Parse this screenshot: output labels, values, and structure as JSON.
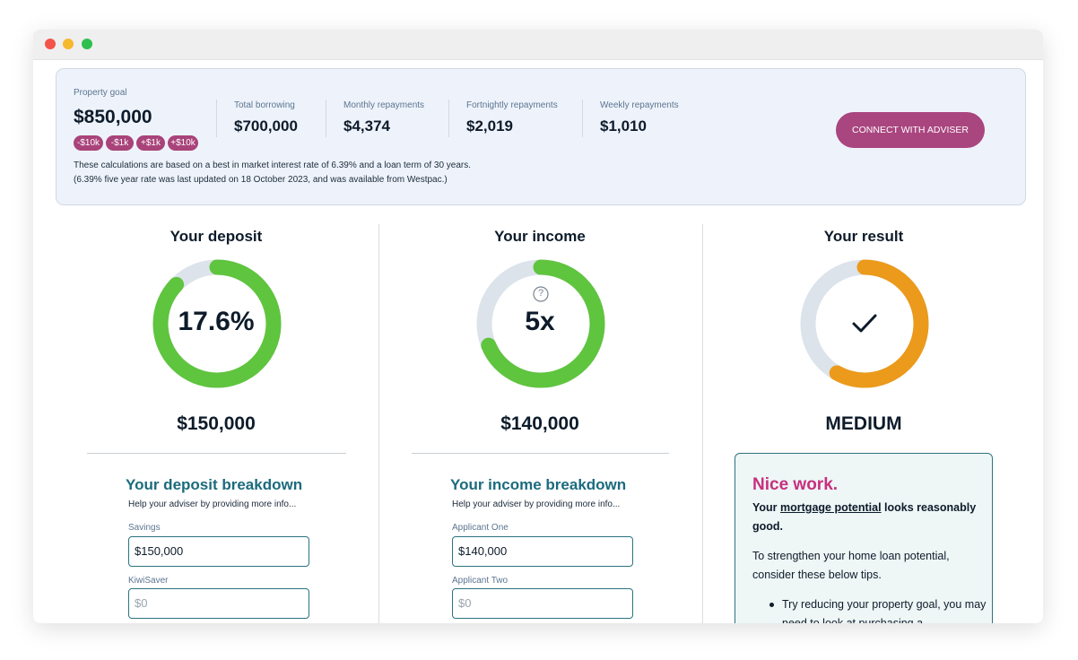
{
  "summary": {
    "property_goal": {
      "label": "Property goal",
      "value": "$850,000"
    },
    "adjust_buttons": [
      "-$10k",
      "-$1k",
      "+$1k",
      "+$10k"
    ],
    "stats": [
      {
        "label": "Total borrowing",
        "value": "$700,000"
      },
      {
        "label": "Monthly repayments",
        "value": "$4,374"
      },
      {
        "label": "Fortnightly repayments",
        "value": "$2,019"
      },
      {
        "label": "Weekly repayments",
        "value": "$1,010"
      }
    ],
    "notes": [
      "These calculations are based on a best in market interest rate of 6.39% and a loan term of 30 years.",
      "(6.39% five year rate was last updated on 18 October 2023, and was available from Westpac.)"
    ],
    "cta": "CONNECT WITH ADVISER"
  },
  "columns": [
    {
      "title": "Your deposit",
      "gauge_label": "17.6%",
      "amount": "$150,000",
      "breakdown": {
        "title": "Your deposit breakdown",
        "hint": "Help your adviser by providing more info...",
        "fields": [
          {
            "label": "Savings",
            "value": "$150,000"
          },
          {
            "label": "KiwiSaver",
            "value": "$0"
          }
        ]
      }
    },
    {
      "title": "Your income",
      "gauge_icon": "?",
      "gauge_label": "5x",
      "amount": "$140,000",
      "breakdown": {
        "title": "Your income breakdown",
        "hint": "Help your adviser by providing more info...",
        "fields": [
          {
            "label": "Applicant One",
            "value": "$140,000"
          },
          {
            "label": "Applicant Two",
            "value": "$0"
          }
        ]
      }
    }
  ],
  "result": {
    "title": "Your result",
    "status": "MEDIUM",
    "card": {
      "heading": "Nice work.",
      "lead": [
        "Your ",
        "mortgage potential",
        " looks reasonably good."
      ],
      "text": "To strengthen your home loan potential, consider these below tips.",
      "tips": [
        "Try reducing your property goal, you may need to look at purchasing a"
      ]
    }
  }
}
